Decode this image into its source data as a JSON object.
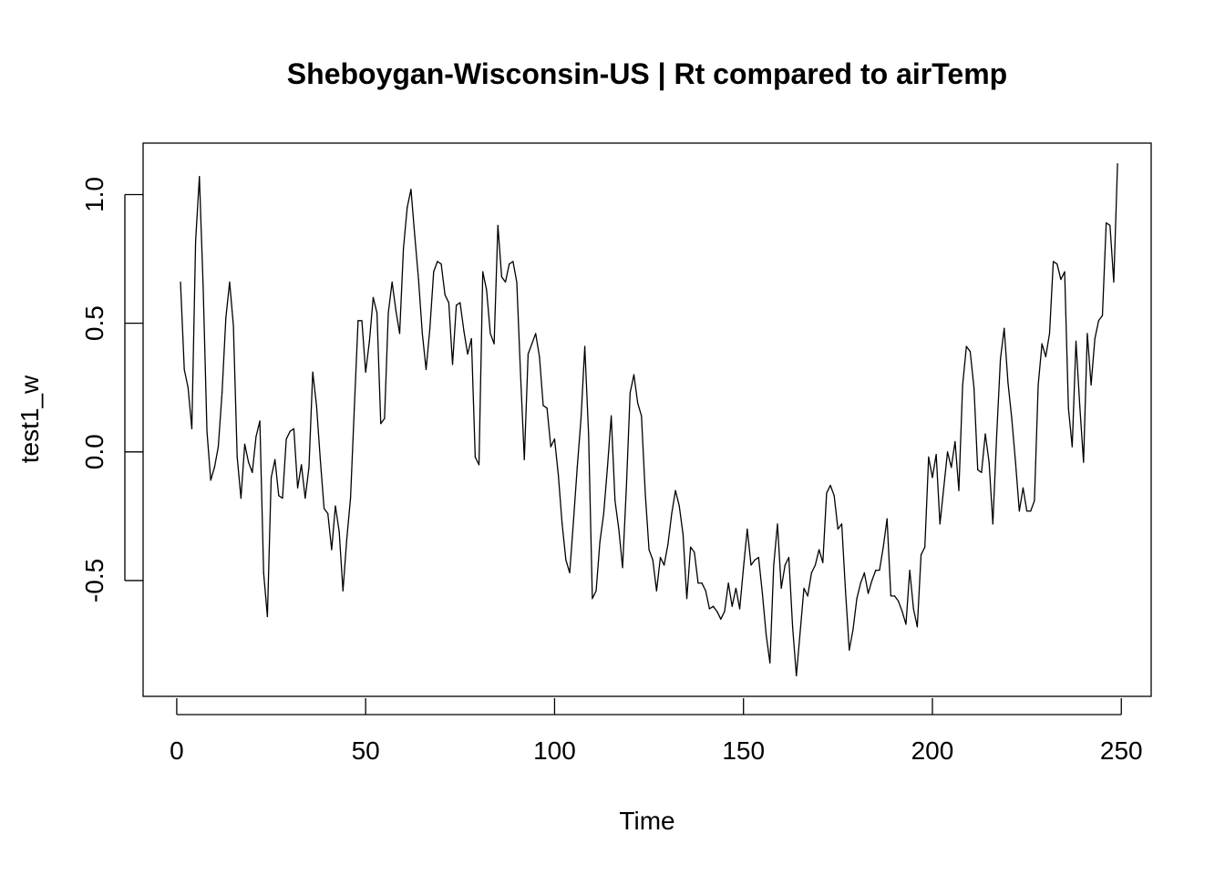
{
  "chart_data": {
    "type": "line",
    "title": "Sheboygan-Wisconsin-US | Rt compared to airTemp",
    "xlabel": "Time",
    "ylabel": "test1_w",
    "xlim": [
      -8.9,
      257.9
    ],
    "ylim": [
      -0.95,
      1.2
    ],
    "x_ticks": [
      0,
      50,
      100,
      150,
      200,
      250
    ],
    "x_tick_labels": [
      "0",
      "50",
      "100",
      "150",
      "200",
      "250"
    ],
    "y_ticks": [
      -0.5,
      0.0,
      0.5,
      1.0
    ],
    "y_tick_labels": [
      "-0.5",
      "0.0",
      "0.5",
      "1.0"
    ],
    "grid": false,
    "legend": "none",
    "line_color": "#000000",
    "series": [
      {
        "x_start": 1,
        "x_step": 1,
        "values": [
          0.66,
          0.32,
          0.25,
          0.09,
          0.82,
          1.07,
          0.64,
          0.08,
          -0.11,
          -0.06,
          0.02,
          0.23,
          0.52,
          0.66,
          0.49,
          -0.02,
          -0.18,
          0.03,
          -0.04,
          -0.08,
          0.06,
          0.12,
          -0.47,
          -0.64,
          -0.1,
          -0.03,
          -0.17,
          -0.18,
          0.05,
          0.08,
          0.09,
          -0.14,
          -0.05,
          -0.18,
          -0.06,
          0.31,
          0.18,
          -0.03,
          -0.22,
          -0.24,
          -0.38,
          -0.21,
          -0.31,
          -0.54,
          -0.34,
          -0.18,
          0.17,
          0.51,
          0.51,
          0.31,
          0.43,
          0.6,
          0.54,
          0.11,
          0.13,
          0.54,
          0.66,
          0.55,
          0.46,
          0.79,
          0.95,
          1.02,
          0.84,
          0.67,
          0.46,
          0.32,
          0.48,
          0.7,
          0.74,
          0.73,
          0.61,
          0.58,
          0.34,
          0.57,
          0.58,
          0.47,
          0.38,
          0.44,
          -0.02,
          -0.05,
          0.7,
          0.63,
          0.46,
          0.42,
          0.88,
          0.68,
          0.66,
          0.73,
          0.74,
          0.66,
          0.3,
          -0.03,
          0.38,
          0.42,
          0.46,
          0.37,
          0.18,
          0.17,
          0.02,
          0.05,
          -0.09,
          -0.28,
          -0.42,
          -0.47,
          -0.27,
          -0.06,
          0.13,
          0.41,
          0.07,
          -0.57,
          -0.54,
          -0.35,
          -0.24,
          -0.06,
          0.14,
          -0.19,
          -0.3,
          -0.45,
          -0.14,
          0.23,
          0.3,
          0.19,
          0.14,
          -0.16,
          -0.38,
          -0.42,
          -0.54,
          -0.41,
          -0.44,
          -0.36,
          -0.24,
          -0.15,
          -0.21,
          -0.32,
          -0.57,
          -0.37,
          -0.39,
          -0.51,
          -0.51,
          -0.54,
          -0.61,
          -0.6,
          -0.62,
          -0.65,
          -0.62,
          -0.51,
          -0.6,
          -0.53,
          -0.61,
          -0.45,
          -0.3,
          -0.44,
          -0.42,
          -0.41,
          -0.55,
          -0.71,
          -0.82,
          -0.44,
          -0.28,
          -0.53,
          -0.44,
          -0.41,
          -0.68,
          -0.87,
          -0.7,
          -0.53,
          -0.56,
          -0.47,
          -0.44,
          -0.38,
          -0.43,
          -0.16,
          -0.13,
          -0.17,
          -0.3,
          -0.28,
          -0.54,
          -0.77,
          -0.69,
          -0.57,
          -0.51,
          -0.47,
          -0.55,
          -0.5,
          -0.46,
          -0.46,
          -0.37,
          -0.26,
          -0.56,
          -0.56,
          -0.58,
          -0.62,
          -0.67,
          -0.46,
          -0.61,
          -0.68,
          -0.4,
          -0.37,
          -0.02,
          -0.1,
          -0.01,
          -0.28,
          -0.14,
          0.0,
          -0.06,
          0.04,
          -0.15,
          0.26,
          0.41,
          0.39,
          0.25,
          -0.07,
          -0.08,
          0.07,
          -0.04,
          -0.28,
          0.06,
          0.36,
          0.48,
          0.27,
          0.13,
          -0.04,
          -0.23,
          -0.14,
          -0.23,
          -0.23,
          -0.19,
          0.26,
          0.42,
          0.37,
          0.46,
          0.74,
          0.73,
          0.67,
          0.7,
          0.17,
          0.02,
          0.43,
          0.18,
          -0.04,
          0.46,
          0.26,
          0.44,
          0.51,
          0.53,
          0.89,
          0.88,
          0.66,
          1.12
        ]
      }
    ]
  }
}
